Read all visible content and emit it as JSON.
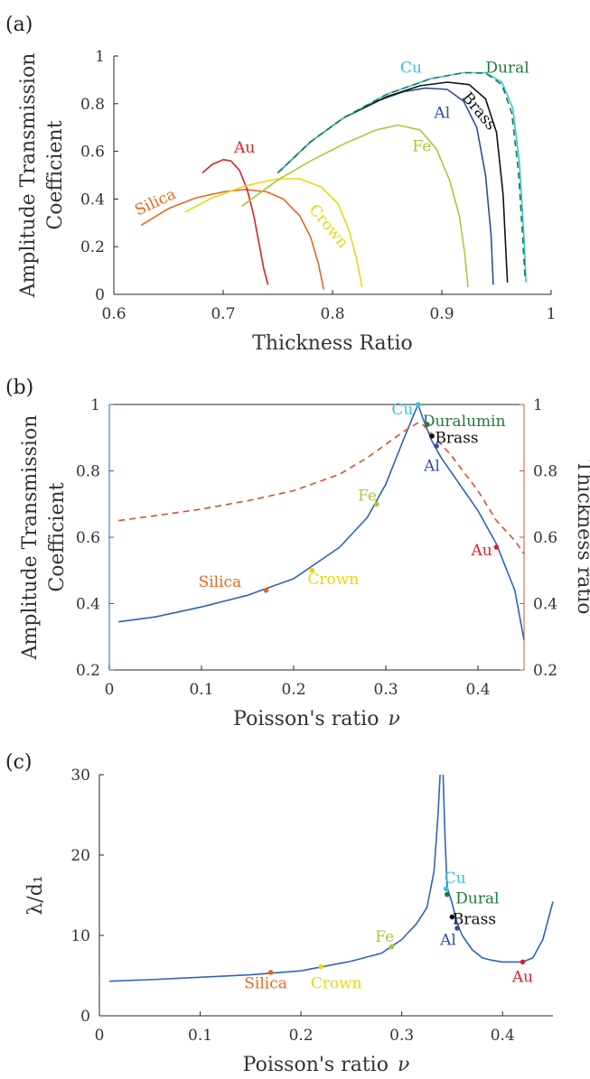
{
  "chart_data": [
    {
      "panel": "(a)",
      "type": "line",
      "xlabel": "Thickness Ratio",
      "ylabel": [
        "Amplitude Transmission",
        "Coefficient"
      ],
      "xlim": [
        0.6,
        1
      ],
      "ylim": [
        0,
        1
      ],
      "xticks": [
        0.6,
        0.7,
        0.8,
        0.9,
        1
      ],
      "xtick_labels": [
        "0.6",
        "0.7",
        "0.8",
        "0.9",
        "1"
      ],
      "yticks": [
        0,
        0.2,
        0.4,
        0.6,
        0.8,
        1
      ],
      "ytick_labels": [
        "0",
        "0.2",
        "0.4",
        "0.6",
        "0.8",
        "1"
      ],
      "grid": false,
      "series": [
        {
          "name": "Silica",
          "color": "#e8651e",
          "style": "solid",
          "x": [
            0.625,
            0.65,
            0.675,
            0.7,
            0.72,
            0.74,
            0.755,
            0.77,
            0.78,
            0.787,
            0.792
          ],
          "y": [
            0.29,
            0.36,
            0.405,
            0.43,
            0.44,
            0.43,
            0.4,
            0.33,
            0.24,
            0.13,
            0.02
          ]
        },
        {
          "name": "Au",
          "color": "#d9202a",
          "style": "solid",
          "x": [
            0.681,
            0.69,
            0.7,
            0.707,
            0.715,
            0.722,
            0.728,
            0.733,
            0.737,
            0.741
          ],
          "y": [
            0.51,
            0.545,
            0.565,
            0.56,
            0.52,
            0.44,
            0.33,
            0.21,
            0.11,
            0.04
          ]
        },
        {
          "name": "Crown",
          "color": "#e6d80f",
          "style": "solid",
          "x": [
            0.665,
            0.69,
            0.72,
            0.75,
            0.77,
            0.79,
            0.805,
            0.815,
            0.822,
            0.827
          ],
          "y": [
            0.345,
            0.405,
            0.455,
            0.485,
            0.485,
            0.45,
            0.38,
            0.27,
            0.15,
            0.03
          ]
        },
        {
          "name": "Fe",
          "color": "#a8c83a",
          "style": "solid",
          "x": [
            0.717,
            0.75,
            0.78,
            0.81,
            0.84,
            0.86,
            0.88,
            0.895,
            0.907,
            0.916,
            0.921,
            0.924
          ],
          "y": [
            0.37,
            0.48,
            0.56,
            0.63,
            0.69,
            0.71,
            0.69,
            0.61,
            0.48,
            0.33,
            0.17,
            0.03
          ]
        },
        {
          "name": "Al",
          "color": "#2f4da3",
          "style": "solid",
          "x": [
            0.75,
            0.78,
            0.81,
            0.84,
            0.865,
            0.885,
            0.905,
            0.92,
            0.932,
            0.94,
            0.945,
            0.947
          ],
          "y": [
            0.51,
            0.64,
            0.74,
            0.81,
            0.85,
            0.865,
            0.86,
            0.81,
            0.7,
            0.5,
            0.25,
            0.04
          ]
        },
        {
          "name": "Brass",
          "color": "#111111",
          "style": "solid",
          "x": [
            0.75,
            0.78,
            0.81,
            0.85,
            0.88,
            0.905,
            0.925,
            0.94,
            0.95,
            0.956,
            0.96
          ],
          "y": [
            0.51,
            0.64,
            0.74,
            0.83,
            0.875,
            0.89,
            0.88,
            0.82,
            0.68,
            0.42,
            0.05
          ]
        },
        {
          "name": "Cu",
          "color": "#36c3e0",
          "style": "solid",
          "x": [
            0.75,
            0.78,
            0.81,
            0.85,
            0.89,
            0.92,
            0.94,
            0.955,
            0.965,
            0.971,
            0.975,
            0.977
          ],
          "y": [
            0.51,
            0.64,
            0.74,
            0.84,
            0.905,
            0.93,
            0.93,
            0.89,
            0.78,
            0.55,
            0.25,
            0.05
          ]
        },
        {
          "name": "Dural",
          "color": "#1f7a3a",
          "style": "dashed",
          "x": [
            0.75,
            0.78,
            0.81,
            0.85,
            0.89,
            0.92,
            0.94,
            0.955,
            0.964,
            0.97,
            0.974,
            0.976
          ],
          "y": [
            0.51,
            0.64,
            0.74,
            0.84,
            0.905,
            0.93,
            0.928,
            0.88,
            0.76,
            0.52,
            0.24,
            0.07
          ]
        }
      ],
      "labels": [
        {
          "text": "Cu",
          "x": 0.862,
          "y": 0.93,
          "color": "#36c3e0"
        },
        {
          "text": "Dural",
          "x": 0.94,
          "y": 0.93,
          "color": "#1f7a3a"
        },
        {
          "text": "Brass",
          "x": 0.918,
          "y": 0.825,
          "color": "#111111",
          "rotate": 50
        },
        {
          "text": "Al",
          "x": 0.893,
          "y": 0.74,
          "color": "#2f4da3"
        },
        {
          "text": "Fe",
          "x": 0.873,
          "y": 0.6,
          "color": "#a8c83a"
        },
        {
          "text": "Au",
          "x": 0.71,
          "y": 0.595,
          "color": "#d9202a"
        },
        {
          "text": "Silica",
          "x": 0.622,
          "y": 0.33,
          "color": "#e8651e",
          "rotate": -25
        },
        {
          "text": "Crown",
          "x": 0.778,
          "y": 0.355,
          "color": "#e6d80f",
          "rotate": 50
        }
      ]
    },
    {
      "panel": "(b)",
      "type": "line",
      "xlabel": "Poisson's ratio",
      "xlabel_symbol": "ν",
      "ylabel": [
        "Amplitude Transmission",
        "Coefficient"
      ],
      "ylabel_right": "Thickness ratio",
      "xlim": [
        0,
        0.45
      ],
      "ylim": [
        0.2,
        1
      ],
      "ylim_right": [
        0.2,
        1
      ],
      "xticks": [
        0,
        0.1,
        0.2,
        0.3,
        0.4
      ],
      "xtick_labels": [
        "0",
        "0.1",
        "0.2",
        "0.3",
        "0.4"
      ],
      "yticks": [
        0.2,
        0.4,
        0.6,
        0.8,
        1
      ],
      "ytick_labels": [
        "0.2",
        "0.4",
        "0.6",
        "0.8",
        "1"
      ],
      "yticks_right": [
        0.2,
        0.4,
        0.6,
        0.8,
        1
      ],
      "ytick_labels_right": [
        "0.2",
        "0.4",
        "0.6",
        "0.8",
        "1"
      ],
      "grid": false,
      "axis_color_left": "#2e63b8",
      "axis_color_right": "#d9502a",
      "series": [
        {
          "axis": "left",
          "color": "#2e63b8",
          "style": "solid",
          "x": [
            0.01,
            0.05,
            0.1,
            0.15,
            0.2,
            0.25,
            0.28,
            0.3,
            0.32,
            0.335,
            0.34,
            0.35,
            0.36,
            0.38,
            0.4,
            0.42,
            0.44,
            0.45
          ],
          "y": [
            0.345,
            0.36,
            0.39,
            0.425,
            0.475,
            0.57,
            0.66,
            0.76,
            0.9,
            1.0,
            0.96,
            0.89,
            0.84,
            0.76,
            0.68,
            0.58,
            0.44,
            0.29
          ]
        },
        {
          "axis": "right",
          "color": "#d9502a",
          "style": "dashed",
          "x": [
            0.01,
            0.05,
            0.1,
            0.15,
            0.2,
            0.25,
            0.28,
            0.3,
            0.32,
            0.335,
            0.34,
            0.35,
            0.37,
            0.4,
            0.42,
            0.44,
            0.45
          ],
          "y": [
            0.65,
            0.665,
            0.685,
            0.71,
            0.74,
            0.79,
            0.84,
            0.88,
            0.92,
            0.945,
            0.94,
            0.91,
            0.85,
            0.74,
            0.65,
            0.59,
            0.55
          ]
        }
      ],
      "points": [
        {
          "name": "Silica",
          "x": 0.17,
          "y": 0.44,
          "color": "#e8651e",
          "lx": 0.12,
          "ly": 0.45
        },
        {
          "name": "Crown",
          "x": 0.22,
          "y": 0.5,
          "color": "#e6d80f",
          "lx": 0.243,
          "ly": 0.458
        },
        {
          "name": "Fe",
          "x": 0.29,
          "y": 0.7,
          "color": "#a8c83a",
          "lx": 0.28,
          "ly": 0.71
        },
        {
          "name": "Cu",
          "x": 0.335,
          "y": 1.0,
          "color": "#36c3e0",
          "lx": 0.318,
          "ly": 0.97
        },
        {
          "name": "Duralumin",
          "x": 0.345,
          "y": 0.94,
          "color": "#1f7a3a",
          "lx": 0.385,
          "ly": 0.935
        },
        {
          "name": "Brass",
          "x": 0.35,
          "y": 0.905,
          "color": "#111111",
          "lx": 0.377,
          "ly": 0.884
        },
        {
          "name": "Al",
          "x": 0.355,
          "y": 0.875,
          "color": "#2f4da3",
          "lx": 0.35,
          "ly": 0.8
        },
        {
          "name": "Au",
          "x": 0.42,
          "y": 0.57,
          "color": "#d9202a",
          "lx": 0.404,
          "ly": 0.545
        }
      ]
    },
    {
      "panel": "(c)",
      "type": "line",
      "xlabel": "Poisson's ratio",
      "xlabel_symbol": "ν",
      "ylabel": "λ/d₁",
      "xlim": [
        0,
        0.45
      ],
      "ylim": [
        0,
        30
      ],
      "xticks": [
        0,
        0.1,
        0.2,
        0.3,
        0.4
      ],
      "xtick_labels": [
        "0",
        "0.1",
        "0.2",
        "0.3",
        "0.4"
      ],
      "yticks": [
        0,
        10,
        20,
        30
      ],
      "ytick_labels": [
        "0",
        "10",
        "20",
        "30"
      ],
      "grid": false,
      "series": [
        {
          "color": "#2e63b8",
          "style": "solid",
          "x": [
            0.01,
            0.05,
            0.1,
            0.15,
            0.2,
            0.25,
            0.28,
            0.3,
            0.315,
            0.325,
            0.332,
            0.336,
            0.338
          ],
          "y": [
            4.3,
            4.5,
            4.8,
            5.1,
            5.6,
            6.8,
            7.8,
            9.5,
            11.5,
            13.5,
            18,
            25,
            30
          ]
        },
        {
          "color": "#2e63b8",
          "style": "solid",
          "x": [
            0.341,
            0.343,
            0.345,
            0.35,
            0.355,
            0.36,
            0.37,
            0.38,
            0.39,
            0.4,
            0.42,
            0.43,
            0.44,
            0.45
          ],
          "y": [
            30,
            22,
            16,
            14,
            11.5,
            10,
            8.2,
            7.2,
            6.9,
            6.7,
            6.7,
            7.2,
            9.5,
            14.2
          ]
        }
      ],
      "points": [
        {
          "name": "Silica",
          "x": 0.17,
          "y": 5.4,
          "color": "#e8651e",
          "lx": 0.165,
          "ly": 3.4
        },
        {
          "name": "Crown",
          "x": 0.22,
          "y": 6.1,
          "color": "#e6d80f",
          "lx": 0.235,
          "ly": 3.4
        },
        {
          "name": "Fe",
          "x": 0.29,
          "y": 8.6,
          "color": "#a8c83a",
          "lx": 0.283,
          "ly": 9.2
        },
        {
          "name": "Cu",
          "x": 0.344,
          "y": 15.8,
          "color": "#36c3e0",
          "lx": 0.353,
          "ly": 16.5
        },
        {
          "name": "Dural",
          "x": 0.345,
          "y": 15.1,
          "color": "#1f7a3a",
          "lx": 0.375,
          "ly": 14.0
        },
        {
          "name": "Brass",
          "x": 0.35,
          "y": 12.3,
          "color": "#111111",
          "lx": 0.372,
          "ly": 11.4
        },
        {
          "name": "Al",
          "x": 0.355,
          "y": 10.9,
          "color": "#2f4da3",
          "lx": 0.346,
          "ly": 8.8
        },
        {
          "name": "Au",
          "x": 0.42,
          "y": 6.7,
          "color": "#d9202a",
          "lx": 0.42,
          "ly": 4.2
        }
      ]
    }
  ]
}
